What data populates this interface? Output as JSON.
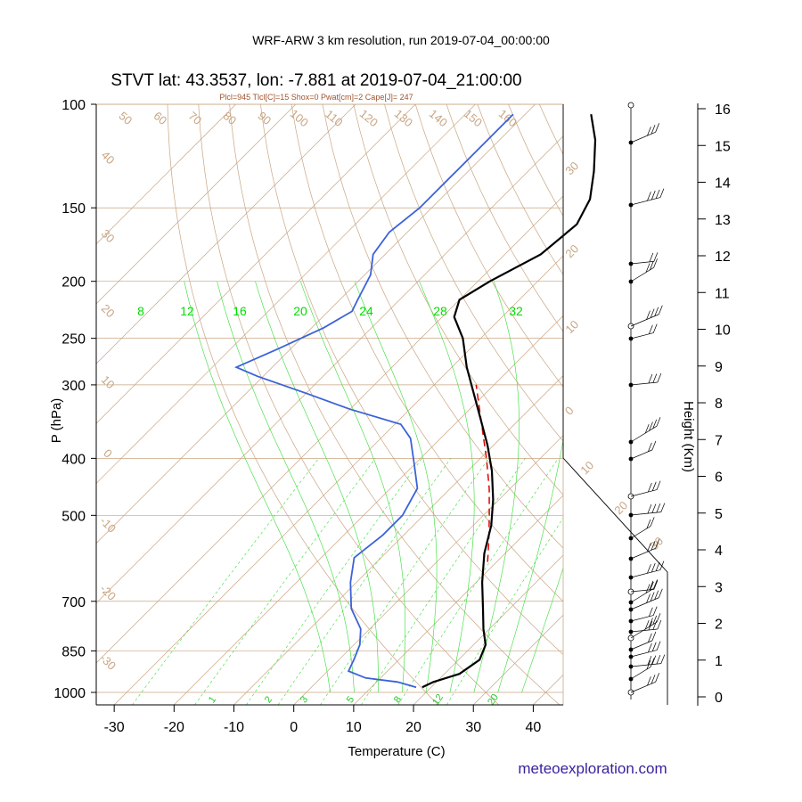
{
  "title": "WRF-ARW 3 km resolution, run 2019-07-04_00:00:00",
  "subtitle": "STVT lat: 43.3537, lon: -7.881 at 2019-07-04_21:00:00",
  "params": "Plcl=945 Tlcl[C]=15 Shox=0 Pwat[cm]=2 Cape[J]= 247",
  "credit": "meteoexploration.com",
  "colors": {
    "temperature": "#000000",
    "dewpoint": "#3b62d8",
    "parcel": "#e00000",
    "isotherm": "#c8a582",
    "mixing_ratio": "#33dd33",
    "label_orange": "#c8a582",
    "label_green": "#00dd00"
  },
  "chart_data": {
    "type": "skew-t",
    "xlabel": "Temperature (C)",
    "ylabel": "P (hPa)",
    "y2label": "Height (Km)",
    "xlim": [
      -33,
      45
    ],
    "ylim_hpa": [
      1050,
      100
    ],
    "x_ticks": [
      "-30",
      "-20",
      "-10",
      "0",
      "10",
      "20",
      "30",
      "40"
    ],
    "pressure_ticks": [
      {
        "p": 100,
        "label": "100"
      },
      {
        "p": 150,
        "label": "150"
      },
      {
        "p": 200,
        "label": "200"
      },
      {
        "p": 250,
        "label": "250"
      },
      {
        "p": 300,
        "label": "300"
      },
      {
        "p": 400,
        "label": "400"
      },
      {
        "p": 500,
        "label": "500"
      },
      {
        "p": 700,
        "label": "700"
      },
      {
        "p": 850,
        "label": "850"
      },
      {
        "p": 1000,
        "label": "1000"
      }
    ],
    "height_ticks_km": [
      "0",
      "1",
      "2",
      "3",
      "4",
      "5",
      "6",
      "7",
      "8",
      "9",
      "10",
      "11",
      "12",
      "13",
      "14",
      "15",
      "16"
    ],
    "temperature_profile": [
      {
        "p": 980,
        "t": 18.5
      },
      {
        "p": 960,
        "t": 19.5
      },
      {
        "p": 930,
        "t": 22.5
      },
      {
        "p": 880,
        "t": 23.5
      },
      {
        "p": 830,
        "t": 22.0
      },
      {
        "p": 780,
        "t": 19.0
      },
      {
        "p": 720,
        "t": 15.5
      },
      {
        "p": 650,
        "t": 11.0
      },
      {
        "p": 580,
        "t": 6.5
      },
      {
        "p": 520,
        "t": 3.0
      },
      {
        "p": 470,
        "t": -1.0
      },
      {
        "p": 420,
        "t": -6.0
      },
      {
        "p": 380,
        "t": -11.0
      },
      {
        "p": 340,
        "t": -17.0
      },
      {
        "p": 310,
        "t": -22.0
      },
      {
        "p": 280,
        "t": -27.5
      },
      {
        "p": 250,
        "t": -33.0
      },
      {
        "p": 230,
        "t": -38.0
      },
      {
        "p": 215,
        "t": -40.0
      },
      {
        "p": 200,
        "t": -38.0
      },
      {
        "p": 180,
        "t": -34.0
      },
      {
        "p": 160,
        "t": -33.0
      },
      {
        "p": 145,
        "t": -35.0
      },
      {
        "p": 130,
        "t": -39.0
      },
      {
        "p": 115,
        "t": -44.0
      },
      {
        "p": 104,
        "t": -49.0
      }
    ],
    "dewpoint_profile": [
      {
        "p": 980,
        "t": 17.5
      },
      {
        "p": 960,
        "t": 13.5
      },
      {
        "p": 945,
        "t": 7.5
      },
      {
        "p": 920,
        "t": 3.5
      },
      {
        "p": 880,
        "t": 2.5
      },
      {
        "p": 830,
        "t": 1.0
      },
      {
        "p": 780,
        "t": -1.5
      },
      {
        "p": 720,
        "t": -6.5
      },
      {
        "p": 650,
        "t": -11.0
      },
      {
        "p": 590,
        "t": -14.5
      },
      {
        "p": 540,
        "t": -13.5
      },
      {
        "p": 500,
        "t": -13.5
      },
      {
        "p": 450,
        "t": -15.5
      },
      {
        "p": 410,
        "t": -20.0
      },
      {
        "p": 370,
        "t": -25.0
      },
      {
        "p": 350,
        "t": -29.0
      },
      {
        "p": 330,
        "t": -40.0
      },
      {
        "p": 310,
        "t": -50.0
      },
      {
        "p": 290,
        "t": -61.0
      },
      {
        "p": 280,
        "t": -66.0
      },
      {
        "p": 260,
        "t": -62.0
      },
      {
        "p": 240,
        "t": -58.0
      },
      {
        "p": 225,
        "t": -56.0
      },
      {
        "p": 215,
        "t": -57.0
      },
      {
        "p": 195,
        "t": -59.0
      },
      {
        "p": 180,
        "t": -62.0
      },
      {
        "p": 165,
        "t": -63.0
      },
      {
        "p": 150,
        "t": -62.0
      },
      {
        "p": 130,
        "t": -62.0
      },
      {
        "p": 115,
        "t": -62.0
      },
      {
        "p": 104,
        "t": -62.0
      }
    ],
    "parcel_profile": [
      {
        "p": 600,
        "t": 8.5
      },
      {
        "p": 550,
        "t": 5.0
      },
      {
        "p": 500,
        "t": 1.0
      },
      {
        "p": 450,
        "t": -3.5
      },
      {
        "p": 400,
        "t": -9.0
      },
      {
        "p": 350,
        "t": -15.5
      },
      {
        "p": 300,
        "t": -23.0
      }
    ],
    "dry_adiabat_labels": [
      "50",
      "60",
      "70",
      "80",
      "90",
      "100",
      "110",
      "120",
      "130",
      "140",
      "150",
      "160"
    ],
    "isotherm_left_labels": [
      "40",
      "30",
      "20",
      "10",
      "0",
      "-10",
      "-20",
      "-30"
    ],
    "isotherm_right_labels": [
      "30",
      "20",
      "10",
      "0",
      "10",
      "20",
      "30"
    ],
    "moist_labels": [
      "8",
      "12",
      "16",
      "20",
      "24",
      "28",
      "32"
    ],
    "mixing_ratio_labels": [
      "1",
      "2",
      "3",
      "5",
      "8",
      "12",
      "20"
    ]
  }
}
